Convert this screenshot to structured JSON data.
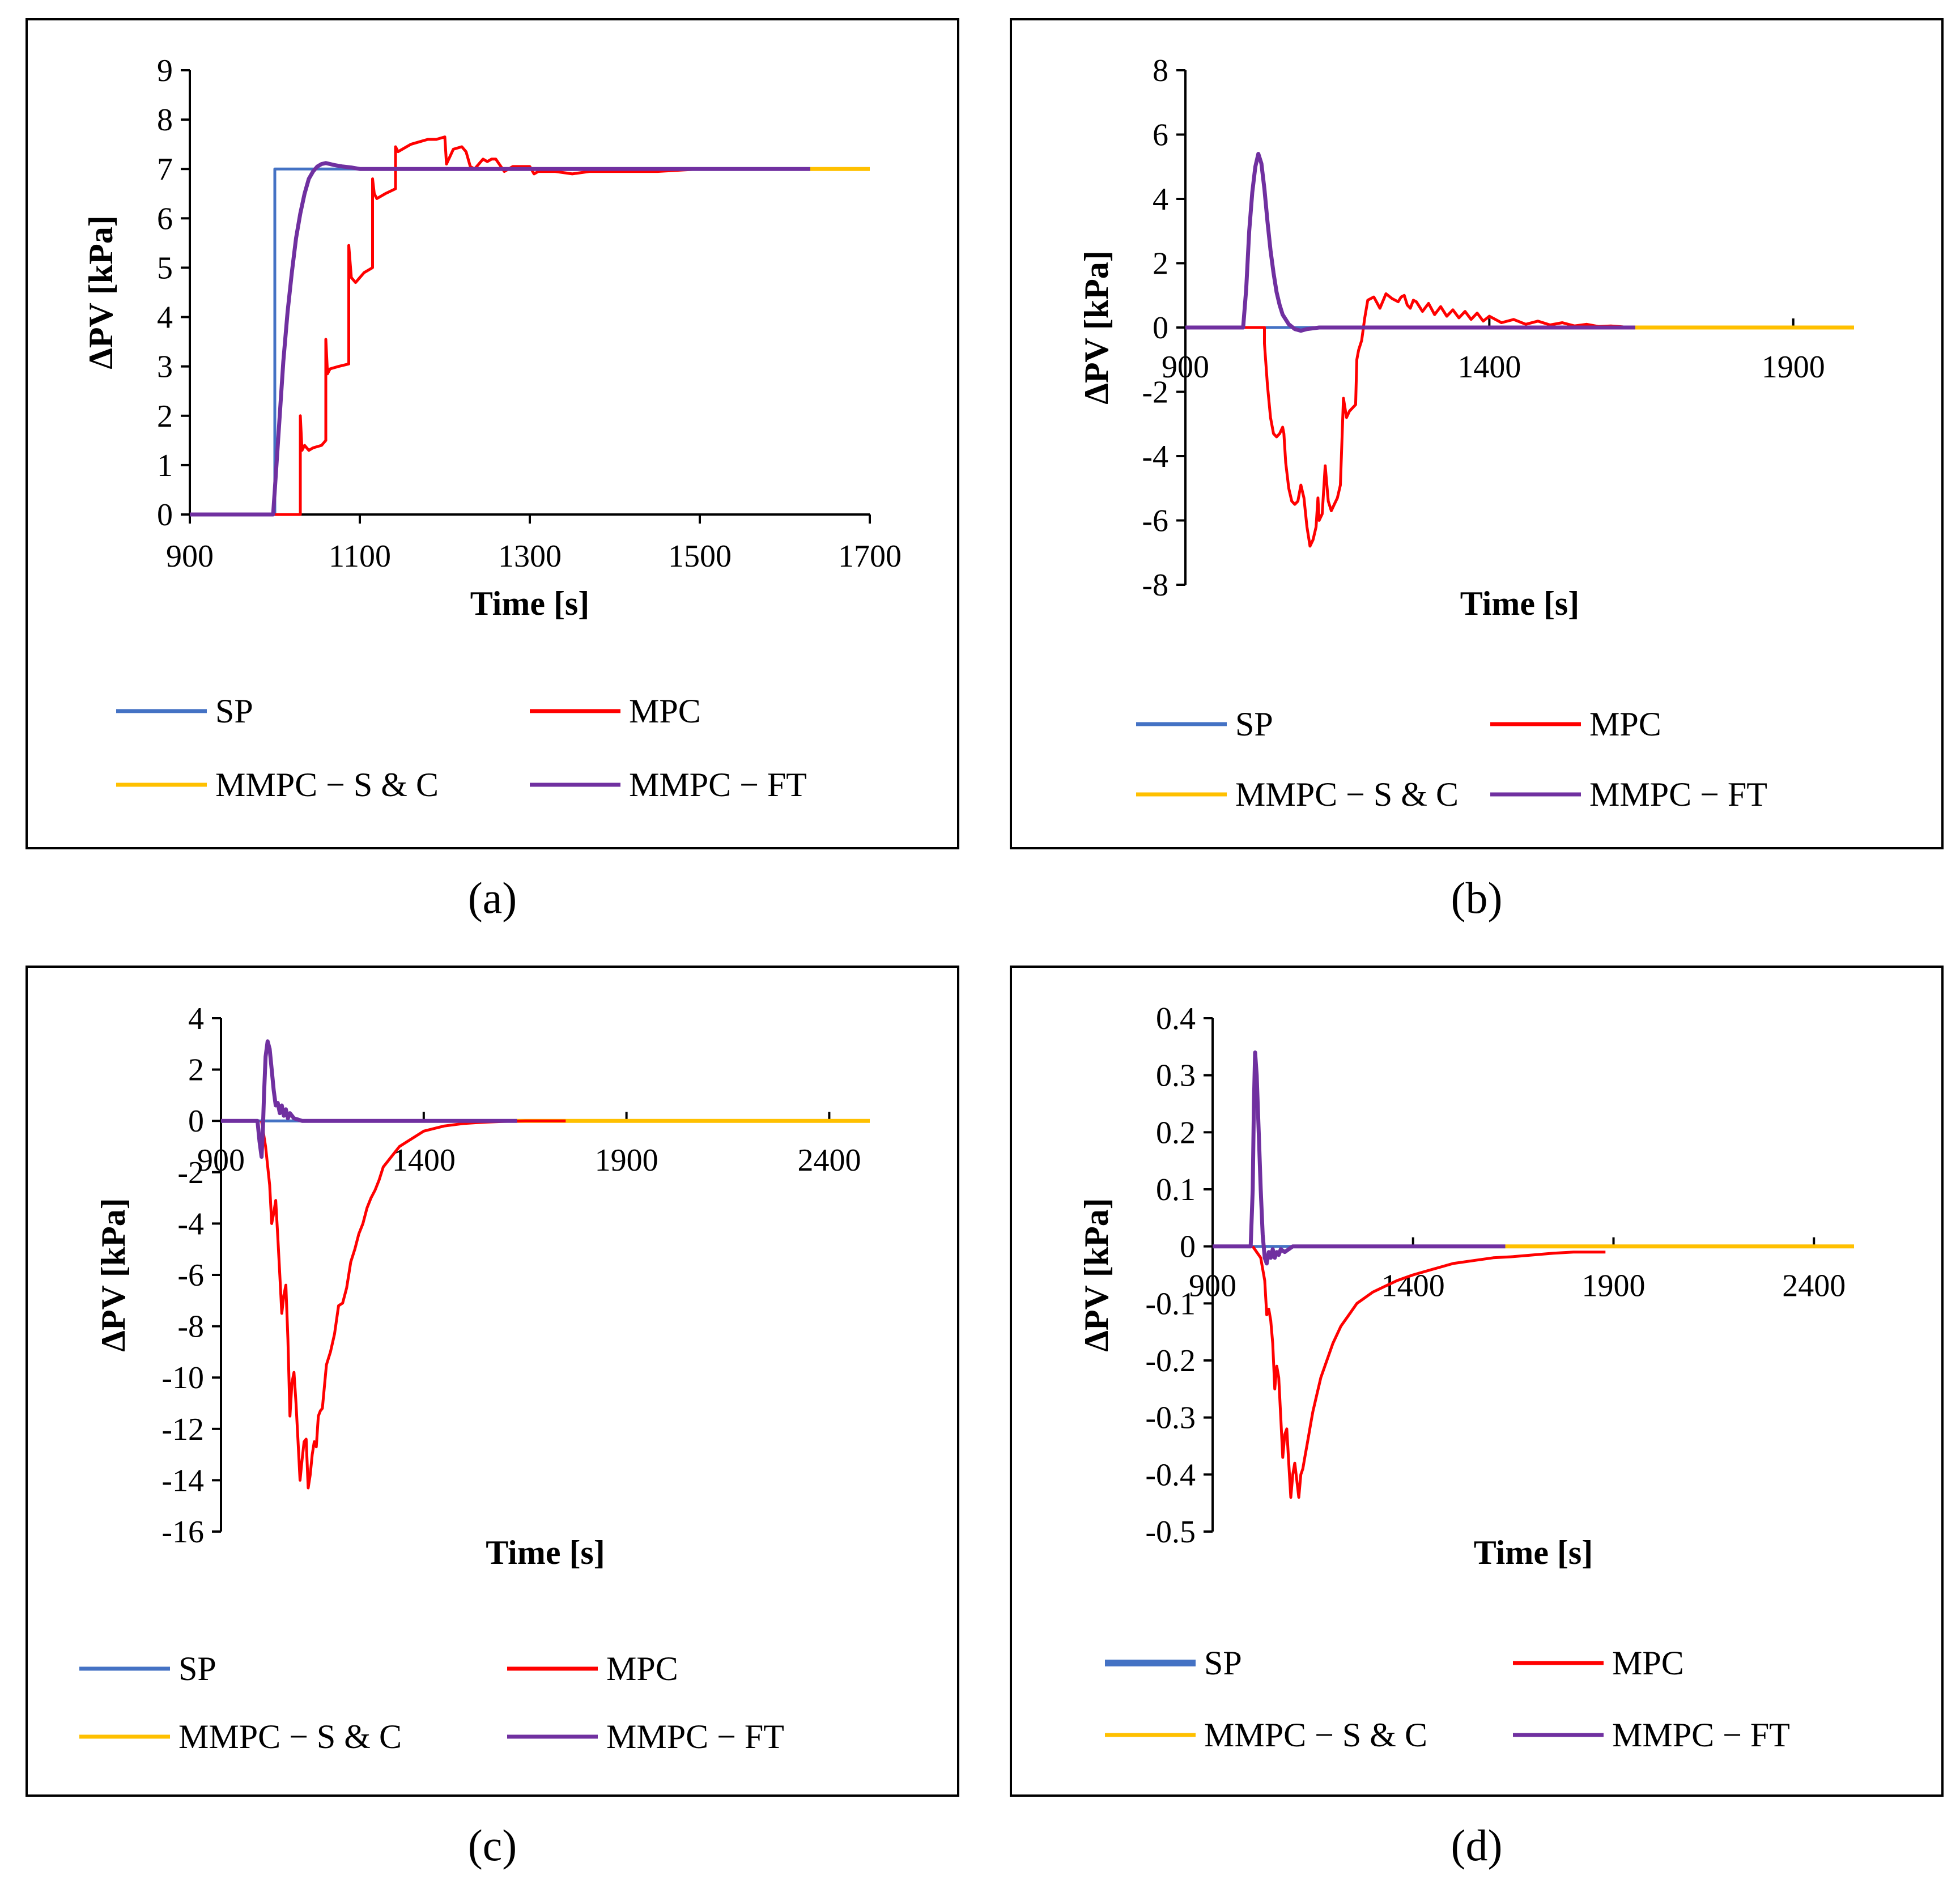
{
  "colors": {
    "SP": "#4472c4",
    "MPC": "#ff0000",
    "MMPC - S & C": "#ffc000",
    "MMPC - FT": "#7030a0"
  },
  "chart_data": [
    {
      "type": "line",
      "caption": "(a)",
      "title": "",
      "xlabel": "Time [s]",
      "ylabel": "ΔPV [kPa]",
      "xlim": [
        900,
        1700
      ],
      "ylim": [
        0,
        9
      ],
      "x_ticks": [
        "900",
        "1100",
        "1300",
        "1500",
        "1700"
      ],
      "y_ticks": [
        "0",
        "1",
        "2",
        "3",
        "4",
        "5",
        "6",
        "7",
        "8",
        "9"
      ],
      "legend": [
        "SP",
        "MPC",
        "MMPC − S & C",
        "MMPC − FT"
      ],
      "series": [
        {
          "name": "SP",
          "color_key": "SP",
          "x": [
            900,
            1000,
            1000,
            1630
          ],
          "y": [
            0,
            0,
            7,
            7
          ]
        },
        {
          "name": "MPC",
          "color_key": "MPC",
          "x": [
            900,
            1030,
            1030,
            1032,
            1035,
            1040,
            1045,
            1055,
            1060,
            1060,
            1062,
            1065,
            1075,
            1087,
            1087,
            1090,
            1095,
            1105,
            1115,
            1115,
            1117,
            1120,
            1130,
            1142,
            1142,
            1145,
            1160,
            1170,
            1180,
            1190,
            1200,
            1202,
            1210,
            1220,
            1225,
            1230,
            1235,
            1245,
            1250,
            1255,
            1260,
            1270,
            1280,
            1290,
            1300,
            1305,
            1310,
            1330,
            1350,
            1370,
            1400,
            1450,
            1500,
            1550,
            1600,
            1630
          ],
          "y": [
            0,
            0,
            2,
            1.3,
            1.4,
            1.3,
            1.35,
            1.4,
            1.5,
            3.55,
            2.85,
            2.95,
            3.0,
            3.05,
            5.45,
            4.8,
            4.7,
            4.9,
            5.0,
            6.8,
            6.5,
            6.4,
            6.5,
            6.6,
            7.45,
            7.35,
            7.5,
            7.55,
            7.6,
            7.6,
            7.65,
            7.1,
            7.4,
            7.45,
            7.35,
            7.05,
            7.0,
            7.2,
            7.15,
            7.2,
            7.2,
            6.95,
            7.05,
            7.05,
            7.05,
            6.9,
            6.95,
            6.95,
            6.9,
            6.95,
            6.95,
            6.95,
            7.0,
            7.0,
            7.0,
            7.0
          ]
        },
        {
          "name": "MMPC - S & C",
          "color_key": "MMPC - S & C",
          "x": [
            1630,
            1700
          ],
          "y": [
            7,
            7
          ]
        },
        {
          "name": "MMPC - FT",
          "color_key": "MMPC - FT",
          "x": [
            900,
            998,
            1000,
            1005,
            1010,
            1015,
            1020,
            1025,
            1030,
            1035,
            1040,
            1045,
            1050,
            1055,
            1060,
            1065,
            1070,
            1080,
            1090,
            1100,
            1150,
            1200,
            1300,
            1400,
            1500,
            1630
          ],
          "y": [
            0,
            0,
            0.5,
            1.8,
            3.1,
            4.1,
            4.9,
            5.6,
            6.1,
            6.5,
            6.8,
            6.95,
            7.05,
            7.1,
            7.12,
            7.1,
            7.08,
            7.05,
            7.03,
            7.0,
            7.0,
            7.0,
            7.0,
            7.0,
            7.0,
            7.0
          ]
        }
      ]
    },
    {
      "type": "line",
      "caption": "(b)",
      "title": "",
      "xlabel": "Time [s]",
      "ylabel": "ΔPV [kPa]",
      "xlim": [
        900,
        2000
      ],
      "ylim": [
        -8,
        8
      ],
      "x_ticks": [
        "900",
        "1400",
        "1900"
      ],
      "y_ticks": [
        "-8",
        "-6",
        "-4",
        "-2",
        "0",
        "2",
        "4",
        "6",
        "8"
      ],
      "legend": [
        "SP",
        "MPC",
        "MMPC − S & C",
        "MMPC − FT"
      ],
      "series": [
        {
          "name": "SP",
          "color_key": "SP",
          "x": [
            900,
            1640
          ],
          "y": [
            0,
            0
          ]
        },
        {
          "name": "MPC",
          "color_key": "MPC",
          "x": [
            900,
            1030,
            1030,
            1035,
            1040,
            1045,
            1050,
            1055,
            1060,
            1062,
            1065,
            1070,
            1075,
            1080,
            1085,
            1087,
            1090,
            1095,
            1100,
            1105,
            1110,
            1115,
            1118,
            1120,
            1125,
            1130,
            1135,
            1140,
            1145,
            1150,
            1155,
            1160,
            1165,
            1170,
            1175,
            1180,
            1182,
            1185,
            1190,
            1195,
            1200,
            1210,
            1220,
            1230,
            1240,
            1250,
            1255,
            1260,
            1265,
            1270,
            1275,
            1280,
            1290,
            1300,
            1310,
            1320,
            1330,
            1340,
            1350,
            1360,
            1370,
            1380,
            1390,
            1400,
            1420,
            1440,
            1460,
            1480,
            1500,
            1520,
            1540,
            1560,
            1580,
            1600,
            1620,
            1640
          ],
          "y": [
            0,
            0,
            -0.5,
            -1.8,
            -2.8,
            -3.3,
            -3.4,
            -3.3,
            -3.1,
            -3.3,
            -4.2,
            -5.0,
            -5.4,
            -5.5,
            -5.4,
            -5.2,
            -4.9,
            -5.3,
            -6.2,
            -6.8,
            -6.6,
            -6.2,
            -5.3,
            -6.0,
            -5.8,
            -4.3,
            -5.4,
            -5.7,
            -5.5,
            -5.3,
            -4.9,
            -2.2,
            -2.8,
            -2.6,
            -2.5,
            -2.4,
            -1.0,
            -0.7,
            -0.4,
            0.3,
            0.85,
            0.95,
            0.6,
            1.05,
            0.9,
            0.8,
            0.95,
            1.0,
            0.7,
            0.6,
            0.85,
            0.8,
            0.5,
            0.75,
            0.4,
            0.65,
            0.35,
            0.55,
            0.3,
            0.5,
            0.25,
            0.45,
            0.2,
            0.35,
            0.15,
            0.25,
            0.1,
            0.2,
            0.08,
            0.15,
            0.05,
            0.1,
            0.03,
            0.05,
            0.02,
            0.0
          ]
        },
        {
          "name": "MMPC - S & C",
          "color_key": "MMPC - S & C",
          "x": [
            1640,
            2000
          ],
          "y": [
            0,
            0
          ]
        },
        {
          "name": "MMPC - FT",
          "color_key": "MMPC - FT",
          "x": [
            900,
            995,
            1000,
            1005,
            1010,
            1015,
            1020,
            1025,
            1030,
            1035,
            1040,
            1045,
            1050,
            1055,
            1060,
            1070,
            1080,
            1090,
            1100,
            1120,
            1150,
            1300,
            1640
          ],
          "y": [
            0,
            0,
            1.2,
            3.0,
            4.2,
            5.0,
            5.4,
            5.1,
            4.3,
            3.3,
            2.4,
            1.7,
            1.1,
            0.7,
            0.4,
            0.1,
            -0.05,
            -0.1,
            -0.05,
            0.0,
            0.0,
            0.0,
            0.0
          ]
        }
      ]
    },
    {
      "type": "line",
      "caption": "(c)",
      "title": "",
      "xlabel": "Time [s]",
      "ylabel": "ΔPV [kPa]",
      "xlim": [
        900,
        2500
      ],
      "ylim": [
        -16,
        4
      ],
      "x_ticks": [
        "900",
        "1400",
        "1900",
        "2400"
      ],
      "y_ticks": [
        "-16",
        "-14",
        "-12",
        "-10",
        "-8",
        "-6",
        "-4",
        "-2",
        "0",
        "2",
        "4"
      ],
      "legend": [
        "SP",
        "MPC",
        "MMPC − S & C",
        "MMPC − FT"
      ],
      "series": [
        {
          "name": "SP",
          "color_key": "SP",
          "x": [
            900,
            1630
          ],
          "y": [
            0,
            0
          ]
        },
        {
          "name": "MPC",
          "color_key": "MPC",
          "x": [
            1000,
            1010,
            1020,
            1025,
            1030,
            1035,
            1040,
            1045,
            1050,
            1055,
            1060,
            1065,
            1070,
            1075,
            1080,
            1085,
            1090,
            1095,
            1100,
            1105,
            1110,
            1115,
            1120,
            1125,
            1130,
            1135,
            1140,
            1145,
            1150,
            1160,
            1170,
            1180,
            1190,
            1200,
            1210,
            1220,
            1230,
            1240,
            1250,
            1260,
            1270,
            1280,
            1290,
            1300,
            1320,
            1340,
            1360,
            1380,
            1400,
            1450,
            1500,
            1550,
            1600,
            1650,
            1700,
            1750
          ],
          "y": [
            0,
            -1.0,
            -2.5,
            -4.0,
            -3.6,
            -3.1,
            -4.5,
            -6.0,
            -7.5,
            -6.8,
            -6.4,
            -8.5,
            -11.5,
            -10.2,
            -9.8,
            -11.0,
            -12.5,
            -14.0,
            -13.2,
            -12.5,
            -12.4,
            -14.3,
            -13.8,
            -13.0,
            -12.5,
            -12.7,
            -11.5,
            -11.3,
            -11.2,
            -9.5,
            -9.0,
            -8.3,
            -7.2,
            -7.1,
            -6.5,
            -5.5,
            -5.0,
            -4.4,
            -4.0,
            -3.4,
            -3.0,
            -2.7,
            -2.3,
            -1.8,
            -1.4,
            -1.0,
            -0.8,
            -0.6,
            -0.4,
            -0.2,
            -0.1,
            -0.05,
            -0.02,
            0.0,
            0.0,
            0.0
          ]
        },
        {
          "name": "MMPC - S & C",
          "color_key": "MMPC - S & C",
          "x": [
            1630,
            2500
          ],
          "y": [
            0,
            0
          ]
        },
        {
          "name": "MMPC - FT",
          "color_key": "MMPC - FT",
          "x": [
            900,
            990,
            995,
            1000,
            1003,
            1006,
            1010,
            1015,
            1020,
            1025,
            1030,
            1035,
            1040,
            1045,
            1050,
            1055,
            1060,
            1065,
            1070,
            1080,
            1090,
            1100,
            1120,
            1150,
            1300,
            1630
          ],
          "y": [
            0,
            0,
            -0.8,
            -1.4,
            -0.5,
            1.0,
            2.5,
            3.1,
            2.8,
            2.0,
            1.2,
            0.6,
            0.7,
            0.3,
            0.6,
            0.2,
            0.45,
            0.1,
            0.3,
            0.1,
            0.05,
            0.0,
            0.0,
            0.0,
            0.0,
            0.0
          ]
        }
      ]
    },
    {
      "type": "line",
      "caption": "(d)",
      "title": "",
      "xlabel": "Time [s]",
      "ylabel": "ΔPV [kPa]",
      "xlim": [
        900,
        2500
      ],
      "ylim": [
        -0.5,
        0.4
      ],
      "x_ticks": [
        "900",
        "1400",
        "1900",
        "2400"
      ],
      "y_ticks": [
        "-0.5",
        "-0.4",
        "-0.3",
        "-0.2",
        "-0.1",
        "0",
        "0.1",
        "0.2",
        "0.3",
        "0.4"
      ],
      "legend": [
        "SP",
        "MPC",
        "MMPC − S & C",
        "MMPC − FT"
      ],
      "series": [
        {
          "name": "SP",
          "color_key": "SP",
          "x": [
            900,
            1630
          ],
          "y": [
            0,
            0
          ]
        },
        {
          "name": "MPC",
          "color_key": "MPC",
          "x": [
            1000,
            1020,
            1030,
            1035,
            1040,
            1045,
            1050,
            1055,
            1060,
            1065,
            1070,
            1075,
            1080,
            1085,
            1090,
            1095,
            1100,
            1105,
            1110,
            1115,
            1120,
            1125,
            1130,
            1135,
            1140,
            1145,
            1150,
            1160,
            1170,
            1180,
            1190,
            1200,
            1220,
            1240,
            1260,
            1280,
            1300,
            1330,
            1360,
            1400,
            1450,
            1500,
            1550,
            1600,
            1650,
            1700,
            1750,
            1800,
            1850,
            1880
          ],
          "y": [
            0,
            -0.02,
            -0.06,
            -0.12,
            -0.11,
            -0.13,
            -0.17,
            -0.25,
            -0.21,
            -0.23,
            -0.3,
            -0.37,
            -0.33,
            -0.32,
            -0.38,
            -0.44,
            -0.4,
            -0.38,
            -0.41,
            -0.44,
            -0.4,
            -0.39,
            -0.37,
            -0.35,
            -0.33,
            -0.31,
            -0.29,
            -0.26,
            -0.23,
            -0.21,
            -0.19,
            -0.17,
            -0.14,
            -0.12,
            -0.1,
            -0.09,
            -0.08,
            -0.07,
            -0.06,
            -0.05,
            -0.04,
            -0.03,
            -0.025,
            -0.02,
            -0.018,
            -0.015,
            -0.012,
            -0.01,
            -0.01,
            -0.01
          ]
        },
        {
          "name": "MMPC - S & C",
          "color_key": "MMPC - S & C",
          "x": [
            1630,
            2500
          ],
          "y": [
            0,
            0
          ]
        },
        {
          "name": "MMPC - FT",
          "color_key": "MMPC - FT",
          "x": [
            900,
            995,
            1000,
            1003,
            1006,
            1010,
            1015,
            1020,
            1025,
            1030,
            1035,
            1040,
            1045,
            1050,
            1055,
            1060,
            1065,
            1070,
            1080,
            1090,
            1100,
            1110,
            1120,
            1150,
            1300,
            1630
          ],
          "y": [
            0,
            0,
            0.1,
            0.25,
            0.34,
            0.3,
            0.2,
            0.1,
            0.02,
            -0.02,
            -0.03,
            -0.01,
            -0.02,
            -0.005,
            -0.02,
            -0.01,
            -0.015,
            -0.005,
            -0.01,
            -0.005,
            0.0,
            0.0,
            0.0,
            0.0,
            0.0,
            0.0
          ]
        }
      ]
    }
  ]
}
